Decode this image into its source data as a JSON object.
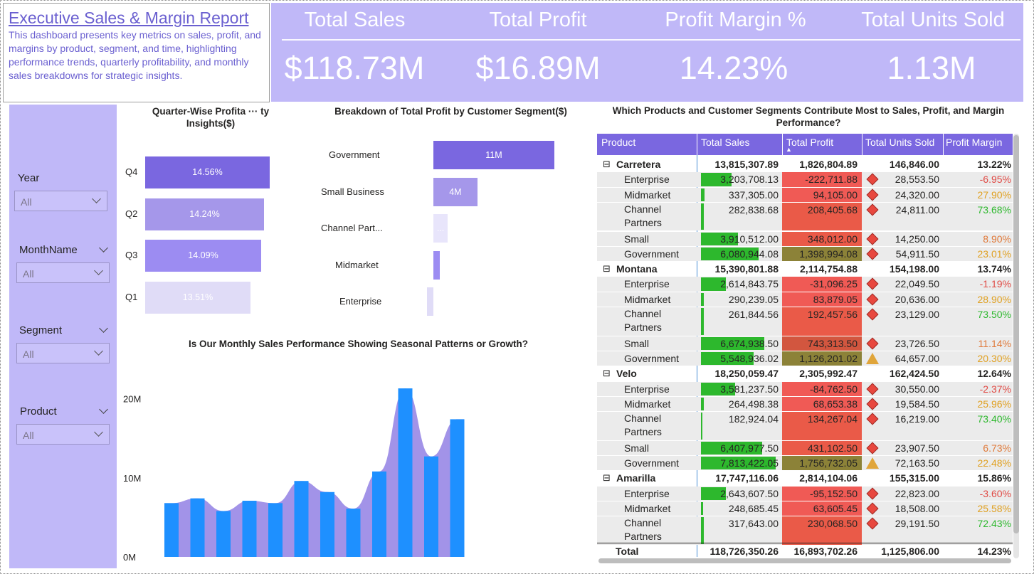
{
  "title": "Executive Sales & Margin Report",
  "description": "This dashboard presents key metrics on sales, profit, and margins by product, segment, and time, highlighting performance trends, quarterly profitability, and monthly sales breakdowns for strategic insights.",
  "kpis": [
    {
      "label": "Total Sales",
      "value": "$118.73M"
    },
    {
      "label": "Total Profit",
      "value": "$16.89M"
    },
    {
      "label": "Profit Margin %",
      "value": "14.23%"
    },
    {
      "label": "Total Units Sold",
      "value": "1.13M"
    }
  ],
  "slicers": [
    {
      "label": "Year",
      "value": "All"
    },
    {
      "label": "MonthName",
      "value": "All"
    },
    {
      "label": "Segment",
      "value": "All"
    },
    {
      "label": "Product",
      "value": "All"
    }
  ],
  "colors": {
    "accent": "#7a67e0",
    "panel": "#c0b8f8",
    "sales_bar": "#1e90ff",
    "area": "#a293e8",
    "green": "#2db82d",
    "red": "#f05a55"
  },
  "chart_data": [
    {
      "type": "bar",
      "title": "Quarter-Wise Profita ··· ty Insights($)",
      "categories": [
        "Q4",
        "Q2",
        "Q3",
        "Q1"
      ],
      "values": [
        14.56,
        14.24,
        14.09,
        13.51
      ],
      "labels": [
        "14.56%",
        "14.24%",
        "14.09%",
        "13.51%"
      ]
    },
    {
      "type": "bar",
      "title": "Breakdown of Total Profit by Customer Segment($)",
      "categories": [
        "Government",
        "Small Business",
        "Channel Part...",
        "Midmarket",
        "Enterprise"
      ],
      "values": [
        11.0,
        4.0,
        1.3,
        0.6,
        0.5
      ],
      "labels": [
        "11M",
        "4M",
        "...",
        "",
        ""
      ]
    },
    {
      "type": "bar",
      "title": "Is Our Monthly Sales Performance Showing Seasonal Patterns or Growth?",
      "y_ticks": [
        "20M",
        "10M",
        "0M"
      ],
      "ylim": [
        0,
        24
      ],
      "values": [
        6.8,
        7.4,
        5.8,
        7.1,
        6.8,
        9.6,
        8.2,
        6.1,
        10.8,
        21.3,
        12.7,
        17.4
      ]
    }
  ],
  "table": {
    "title": "Which Products and Customer Segments Contribute Most to Sales, Profit, and Margin Performance?",
    "columns": [
      "Product",
      "Total Sales",
      "Total Profit",
      "Total Units Sold",
      "Profit Margin"
    ],
    "sort_indicator": "▲",
    "groups": [
      {
        "product": "Carretera",
        "sales": "13,815,307.89",
        "profit": "1,826,804.89",
        "units": "146,846.00",
        "margin": "13.22%",
        "rows": [
          {
            "segment": "Enterprise",
            "sales": "3,203,708.13",
            "profit": "-222,711.88",
            "units": "28,553.50",
            "margin": "-6.95%",
            "icon": "diamond"
          },
          {
            "segment": "Midmarket",
            "sales": "337,305.00",
            "profit": "94,105.00",
            "units": "24,320.00",
            "margin": "27.90%",
            "icon": "diamond"
          },
          {
            "segment": "Channel Partners",
            "sales": "282,838.68",
            "profit": "208,405.68",
            "units": "24,811.00",
            "margin": "73.68%",
            "icon": "diamond"
          },
          {
            "segment": "Small",
            "sales": "3,910,512.00",
            "profit": "348,012.00",
            "units": "14,250.00",
            "margin": "8.90%",
            "icon": "diamond"
          },
          {
            "segment": "Government",
            "sales": "6,080,944.08",
            "profit": "1,398,994.08",
            "units": "54,911.50",
            "margin": "23.01%",
            "icon": "diamond"
          }
        ]
      },
      {
        "product": "Montana",
        "sales": "15,390,801.88",
        "profit": "2,114,754.88",
        "units": "154,198.00",
        "margin": "13.74%",
        "rows": [
          {
            "segment": "Enterprise",
            "sales": "2,614,843.75",
            "profit": "-31,096.25",
            "units": "22,049.50",
            "margin": "-1.19%",
            "icon": "diamond"
          },
          {
            "segment": "Midmarket",
            "sales": "290,239.05",
            "profit": "83,879.05",
            "units": "20,636.00",
            "margin": "28.90%",
            "icon": "diamond"
          },
          {
            "segment": "Channel Partners",
            "sales": "261,844.56",
            "profit": "192,457.56",
            "units": "23,129.00",
            "margin": "73.50%",
            "icon": "diamond"
          },
          {
            "segment": "Small",
            "sales": "6,674,938.50",
            "profit": "743,313.50",
            "units": "23,726.50",
            "margin": "11.14%",
            "icon": "diamond"
          },
          {
            "segment": "Government",
            "sales": "5,548,936.02",
            "profit": "1,126,201.02",
            "units": "64,657.00",
            "margin": "20.30%",
            "icon": "triangle"
          }
        ]
      },
      {
        "product": "Velo",
        "sales": "18,250,059.47",
        "profit": "2,305,992.47",
        "units": "162,424.50",
        "margin": "12.64%",
        "rows": [
          {
            "segment": "Enterprise",
            "sales": "3,581,237.50",
            "profit": "-84,762.50",
            "units": "30,550.00",
            "margin": "-2.37%",
            "icon": "diamond"
          },
          {
            "segment": "Midmarket",
            "sales": "264,498.38",
            "profit": "68,653.38",
            "units": "19,584.50",
            "margin": "25.96%",
            "icon": "diamond"
          },
          {
            "segment": "Channel Partners",
            "sales": "182,924.04",
            "profit": "134,267.04",
            "units": "16,219.00",
            "margin": "73.40%",
            "icon": "diamond"
          },
          {
            "segment": "Small",
            "sales": "6,407,977.50",
            "profit": "431,102.50",
            "units": "23,907.50",
            "margin": "6.73%",
            "icon": "diamond"
          },
          {
            "segment": "Government",
            "sales": "7,813,422.05",
            "profit": "1,756,732.05",
            "units": "72,163.50",
            "margin": "22.48%",
            "icon": "triangle"
          }
        ]
      },
      {
        "product": "Amarilla",
        "sales": "17,747,116.06",
        "profit": "2,814,104.06",
        "units": "155,315.00",
        "margin": "15.86%",
        "rows": [
          {
            "segment": "Enterprise",
            "sales": "2,643,607.50",
            "profit": "-95,152.50",
            "units": "22,823.00",
            "margin": "-3.60%",
            "icon": "diamond"
          },
          {
            "segment": "Midmarket",
            "sales": "248,685.45",
            "profit": "63,605.45",
            "units": "18,508.00",
            "margin": "25.58%",
            "icon": "diamond"
          },
          {
            "segment": "Channel Partners",
            "sales": "317,643.00",
            "profit": "230,068.50",
            "units": "29,191.50",
            "margin": "72.43%",
            "icon": "diamond"
          }
        ]
      }
    ],
    "total": {
      "label": "Total",
      "sales": "118,726,350.26",
      "profit": "16,893,702.26",
      "units": "1,125,806.00",
      "margin": "14.23%"
    }
  }
}
